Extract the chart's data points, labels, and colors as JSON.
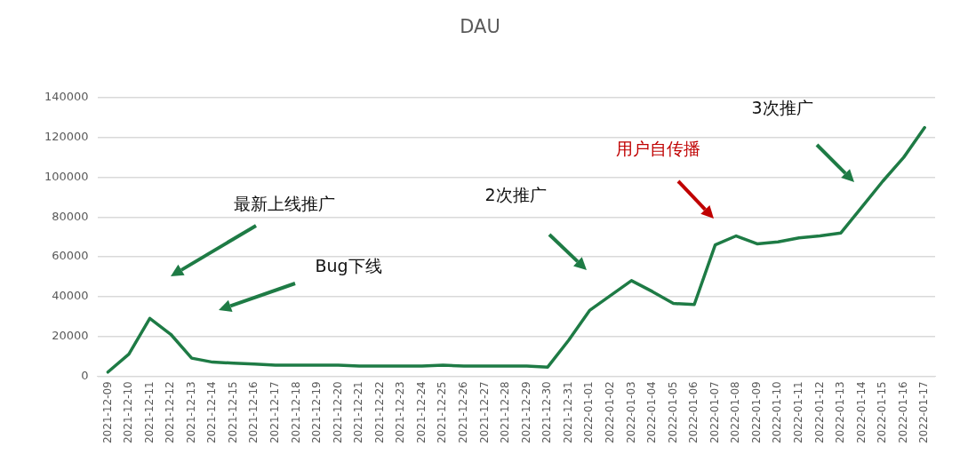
{
  "chart_data": {
    "type": "line",
    "title": "DAU",
    "categories": [
      "2021-12-09",
      "2021-12-10",
      "2021-12-11",
      "2021-12-12",
      "2021-12-13",
      "2021-12-14",
      "2021-12-15",
      "2021-12-16",
      "2021-12-17",
      "2021-12-18",
      "2021-12-19",
      "2021-12-20",
      "2021-12-21",
      "2021-12-22",
      "2021-12-23",
      "2021-12-24",
      "2021-12-25",
      "2021-12-26",
      "2021-12-27",
      "2021-12-28",
      "2021-12-29",
      "2021-12-30",
      "2021-12-31",
      "2022-01-01",
      "2022-01-02",
      "2022-01-03",
      "2022-01-04",
      "2022-01-05",
      "2022-01-06",
      "2022-01-07",
      "2022-01-08",
      "2022-01-09",
      "2022-01-10",
      "2022-01-11",
      "2022-01-12",
      "2022-01-13",
      "2022-01-14",
      "2022-01-15",
      "2022-01-16",
      "2022-01-17"
    ],
    "series": [
      {
        "color": "#1e7b45",
        "values": [
          2000,
          11000,
          29000,
          21000,
          9000,
          7000,
          6500,
          6000,
          5500,
          5500,
          5500,
          5500,
          5000,
          5000,
          5000,
          5000,
          5500,
          5000,
          5000,
          5000,
          5000,
          4500,
          18000,
          33000,
          40500,
          48000,
          42500,
          36500,
          36000,
          66000,
          70500,
          66500,
          67500,
          69500,
          70500,
          72000,
          85000,
          98000,
          110000,
          125000
        ]
      }
    ],
    "ylim": [
      0,
      140000
    ],
    "yticks": [
      0,
      20000,
      40000,
      60000,
      80000,
      100000,
      120000,
      140000
    ],
    "grid": "y",
    "legend": false,
    "marker": "none",
    "line_style": "solid",
    "annotations": [
      "最新上线推广",
      "Bug下线",
      "2次推广",
      "用户自传播",
      "3次推广"
    ]
  }
}
